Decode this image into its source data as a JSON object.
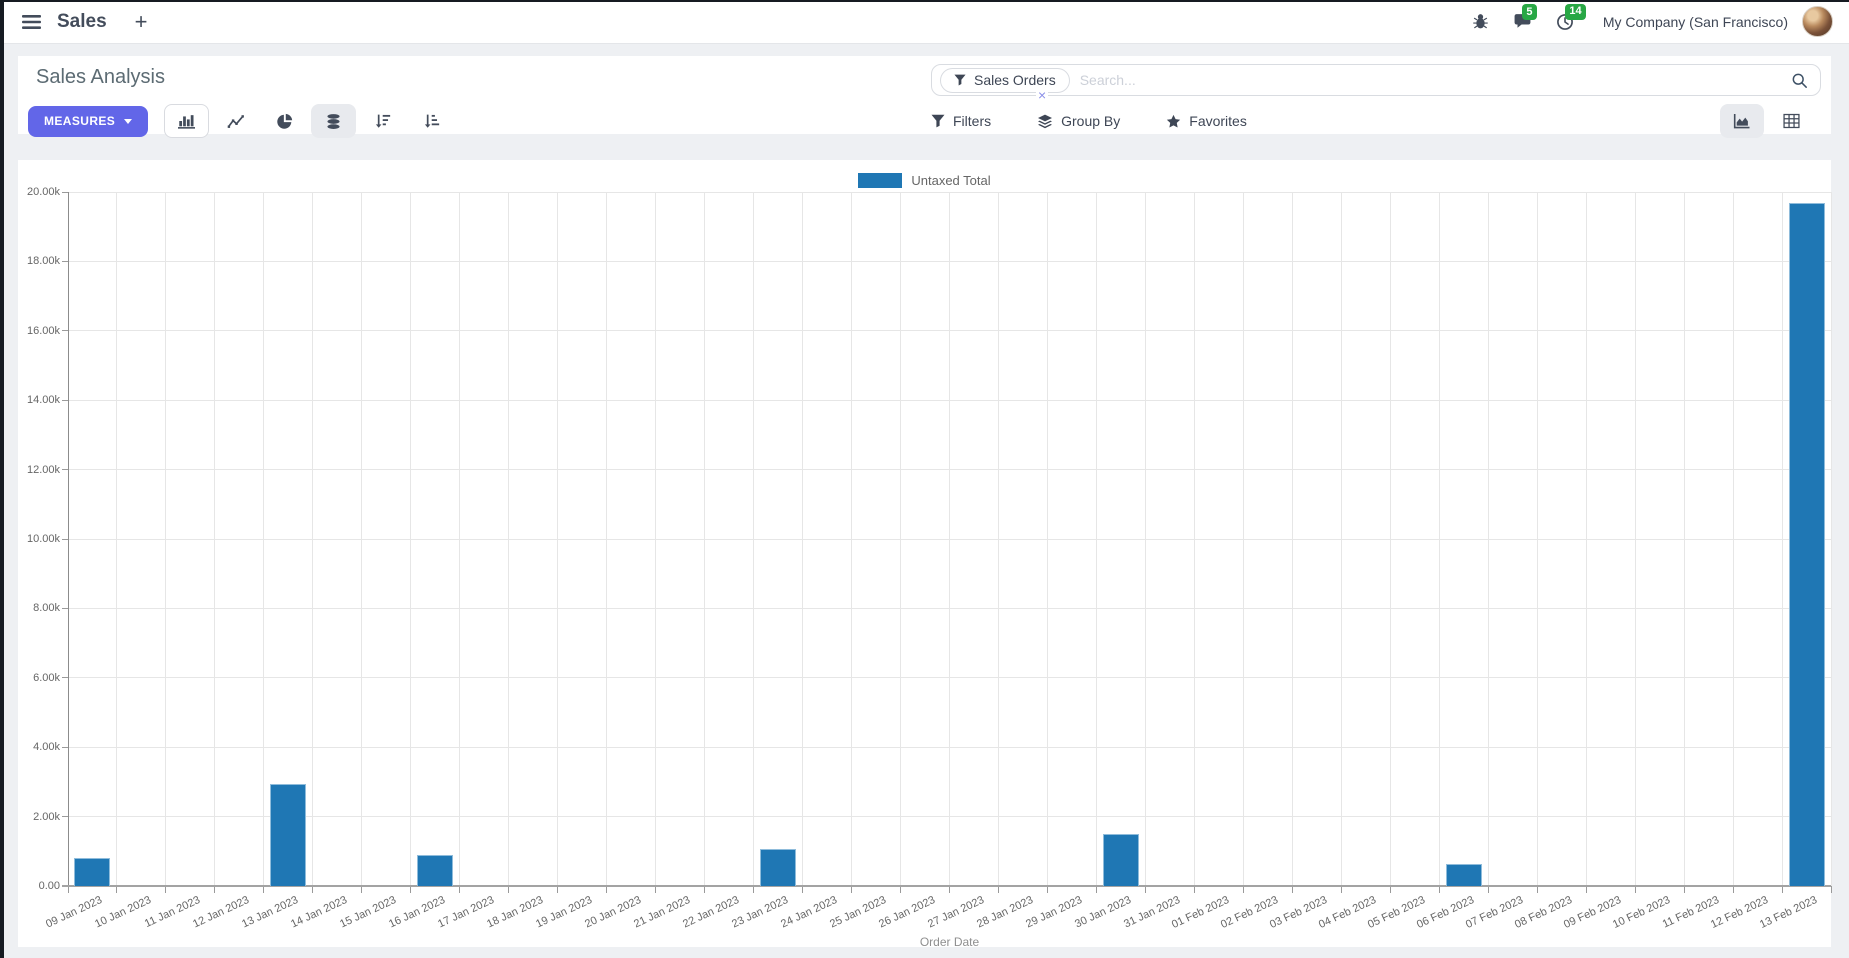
{
  "navbar": {
    "app_name": "Sales",
    "plus_label": "+",
    "messages_badge": "5",
    "activities_badge": "14",
    "company": "My Company (San Francisco)"
  },
  "control_panel": {
    "title": "Sales Analysis",
    "search": {
      "facet": "Sales Orders",
      "remove_facet": "×",
      "placeholder": "Search..."
    },
    "measures_label": "MEASURES",
    "filters_label": "Filters",
    "group_by_label": "Group By",
    "favorites_label": "Favorites"
  },
  "colors": {
    "accent": "#6266e8",
    "bar_fill": "#1f77b4",
    "bar_border": "#8fbcdb",
    "badge_green": "#28a745"
  },
  "chart_data": {
    "type": "bar",
    "title": "",
    "xlabel": "Order Date",
    "ylabel": "",
    "ylim": [
      0,
      20000
    ],
    "grid": true,
    "legend_position": "top",
    "y_ticks": [
      "0.00",
      "2.00k",
      "4.00k",
      "6.00k",
      "8.00k",
      "10.00k",
      "12.00k",
      "14.00k",
      "16.00k",
      "18.00k",
      "20.00k"
    ],
    "categories": [
      "09 Jan 2023",
      "10 Jan 2023",
      "11 Jan 2023",
      "12 Jan 2023",
      "13 Jan 2023",
      "14 Jan 2023",
      "15 Jan 2023",
      "16 Jan 2023",
      "17 Jan 2023",
      "18 Jan 2023",
      "19 Jan 2023",
      "20 Jan 2023",
      "21 Jan 2023",
      "22 Jan 2023",
      "23 Jan 2023",
      "24 Jan 2023",
      "25 Jan 2023",
      "26 Jan 2023",
      "27 Jan 2023",
      "28 Jan 2023",
      "29 Jan 2023",
      "30 Jan 2023",
      "31 Jan 2023",
      "01 Feb 2023",
      "02 Feb 2023",
      "03 Feb 2023",
      "04 Feb 2023",
      "05 Feb 2023",
      "06 Feb 2023",
      "07 Feb 2023",
      "08 Feb 2023",
      "09 Feb 2023",
      "10 Feb 2023",
      "11 Feb 2023",
      "12 Feb 2023",
      "13 Feb 2023"
    ],
    "series": [
      {
        "name": "Untaxed Total",
        "color": "#1f77b4",
        "values": [
          820,
          0,
          0,
          0,
          2950,
          0,
          0,
          900,
          0,
          0,
          0,
          0,
          0,
          0,
          1080,
          0,
          0,
          0,
          0,
          0,
          0,
          1500,
          0,
          0,
          0,
          0,
          0,
          0,
          640,
          0,
          0,
          0,
          0,
          0,
          0,
          19680
        ]
      }
    ]
  }
}
